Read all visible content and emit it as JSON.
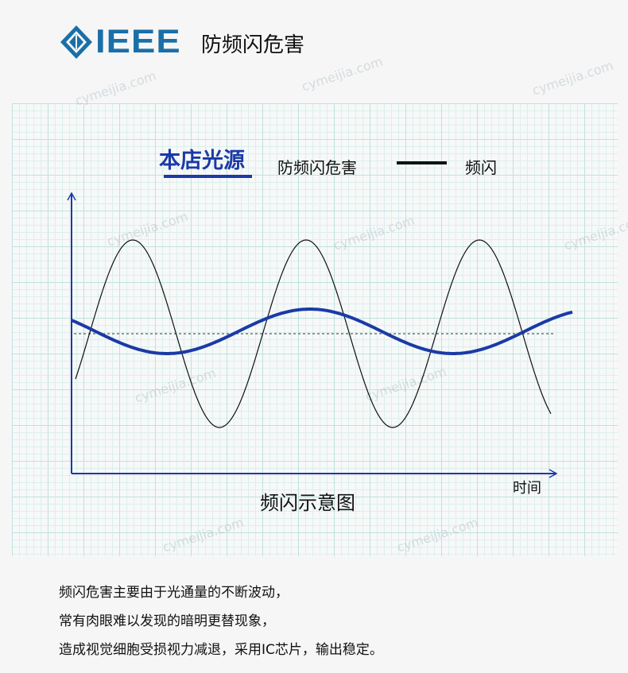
{
  "header": {
    "logo_text": "IEEE",
    "title": "防频闪危害",
    "brand_color": "#1a6fa8"
  },
  "legend": {
    "our_light": "本店光源",
    "our_light_desc": "防频闪危害",
    "flicker_label": "频闪",
    "our_color": "#1b3aa6",
    "flicker_color": "#111111"
  },
  "diagram": {
    "x_axis_label": "时间",
    "caption": "频闪示意图"
  },
  "body": {
    "lines": [
      "频闪危害主要由于光通量的不断波动，",
      "常有肉眼难以发现的暗明更替现象，",
      "造成视觉细胞受损视力减退，采用IC芯片，输出稳定。"
    ]
  },
  "watermark": "cymeijia.com"
}
